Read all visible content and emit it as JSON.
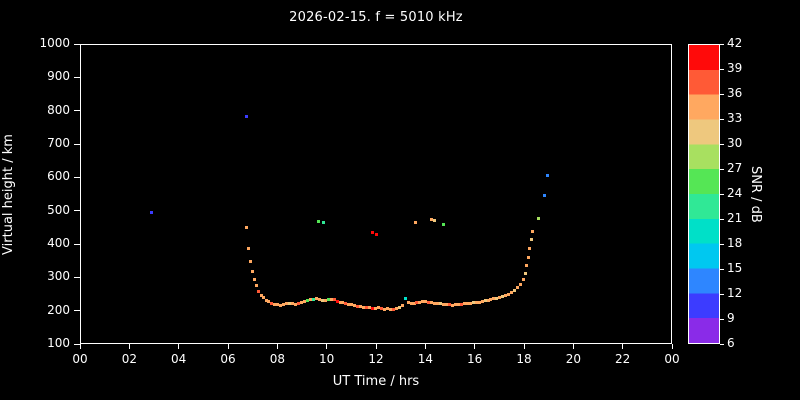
{
  "title": "2026-02-15. f = 5010 kHz",
  "colors": {
    "background": "#000000",
    "foreground": "#ffffff"
  },
  "chart_data": {
    "type": "scatter",
    "title": "2026-02-15. f = 5010 kHz",
    "xlabel": "UT Time / hrs",
    "ylabel": "Virtual height / km",
    "colorbar_label": "SNR / dB",
    "xlim": [
      0,
      24
    ],
    "ylim": [
      100,
      1000
    ],
    "grid": false,
    "x_tick_labels": [
      "00",
      "02",
      "04",
      "06",
      "08",
      "10",
      "12",
      "14",
      "16",
      "18",
      "20",
      "22",
      "00"
    ],
    "y_tick_values": [
      100,
      200,
      300,
      400,
      500,
      600,
      700,
      800,
      900,
      1000
    ],
    "colorbar_tick_values": [
      6,
      9,
      12,
      15,
      18,
      21,
      24,
      27,
      30,
      33,
      36,
      39,
      42
    ],
    "colorbar_range": [
      6,
      42
    ],
    "colorbar_bands": [
      {
        "min": 6,
        "max": 9,
        "color": "#8a2be8"
      },
      {
        "min": 9,
        "max": 12,
        "color": "#3c3cff"
      },
      {
        "min": 12,
        "max": 15,
        "color": "#2e86ff"
      },
      {
        "min": 15,
        "max": 18,
        "color": "#00c8f0"
      },
      {
        "min": 18,
        "max": 21,
        "color": "#00e0c8"
      },
      {
        "min": 21,
        "max": 24,
        "color": "#30e896"
      },
      {
        "min": 24,
        "max": 27,
        "color": "#55e655"
      },
      {
        "min": 27,
        "max": 30,
        "color": "#a8e060"
      },
      {
        "min": 30,
        "max": 33,
        "color": "#eec87e"
      },
      {
        "min": 33,
        "max": 36,
        "color": "#ffa860"
      },
      {
        "min": 36,
        "max": 39,
        "color": "#ff5a36"
      },
      {
        "min": 39,
        "max": 42,
        "color": "#ff0a0a"
      }
    ],
    "points_format": [
      "ut_hours",
      "virtual_height_km",
      "snr_db"
    ],
    "points": [
      [
        2.85,
        497,
        11
      ],
      [
        6.72,
        785,
        10
      ],
      [
        6.7,
        452,
        34
      ],
      [
        6.8,
        390,
        33
      ],
      [
        6.88,
        352,
        34
      ],
      [
        6.96,
        322,
        33
      ],
      [
        7.04,
        298,
        34
      ],
      [
        7.12,
        278,
        33
      ],
      [
        7.2,
        262,
        36
      ],
      [
        7.3,
        250,
        34
      ],
      [
        7.4,
        242,
        33
      ],
      [
        7.5,
        235,
        34
      ],
      [
        7.62,
        230,
        33
      ],
      [
        7.74,
        226,
        36
      ],
      [
        7.86,
        223,
        33
      ],
      [
        7.98,
        221,
        34
      ],
      [
        8.1,
        220,
        33
      ],
      [
        8.22,
        222,
        34
      ],
      [
        8.34,
        224,
        33
      ],
      [
        8.46,
        226,
        30
      ],
      [
        8.58,
        224,
        34
      ],
      [
        8.7,
        222,
        33
      ],
      [
        8.82,
        224,
        36
      ],
      [
        8.94,
        228,
        33
      ],
      [
        9.06,
        231,
        34
      ],
      [
        9.18,
        234,
        24
      ],
      [
        9.3,
        236,
        33
      ],
      [
        9.42,
        238,
        21
      ],
      [
        9.54,
        239,
        34
      ],
      [
        9.66,
        237,
        33
      ],
      [
        9.78,
        235,
        30
      ],
      [
        9.9,
        233,
        33
      ],
      [
        10.02,
        236,
        24
      ],
      [
        10.14,
        238,
        33
      ],
      [
        10.26,
        236,
        36
      ],
      [
        10.38,
        232,
        39
      ],
      [
        10.5,
        229,
        33
      ],
      [
        10.62,
        227,
        34
      ],
      [
        10.74,
        225,
        36
      ],
      [
        10.86,
        223,
        33
      ],
      [
        10.98,
        221,
        34
      ],
      [
        11.1,
        219,
        33
      ],
      [
        11.22,
        217,
        36
      ],
      [
        11.34,
        215,
        33
      ],
      [
        11.46,
        214,
        34
      ],
      [
        11.58,
        213,
        36
      ],
      [
        11.7,
        212,
        33
      ],
      [
        11.82,
        210,
        39
      ],
      [
        11.94,
        209,
        34
      ],
      [
        12.06,
        213,
        33
      ],
      [
        12.18,
        209,
        36
      ],
      [
        12.3,
        207,
        33
      ],
      [
        12.42,
        210,
        34
      ],
      [
        12.54,
        206,
        33
      ],
      [
        12.66,
        208,
        36
      ],
      [
        12.78,
        211,
        33
      ],
      [
        12.9,
        214,
        30
      ],
      [
        13.02,
        219,
        34
      ],
      [
        13.14,
        240,
        18
      ],
      [
        13.26,
        228,
        33
      ],
      [
        13.38,
        226,
        34
      ],
      [
        13.5,
        225,
        33
      ],
      [
        13.62,
        227,
        36
      ],
      [
        13.74,
        229,
        33
      ],
      [
        13.86,
        231,
        34
      ],
      [
        13.98,
        231,
        33
      ],
      [
        14.1,
        229,
        36
      ],
      [
        14.22,
        227,
        33
      ],
      [
        14.34,
        226,
        34
      ],
      [
        14.46,
        225,
        33
      ],
      [
        14.58,
        224,
        30
      ],
      [
        14.7,
        223,
        34
      ],
      [
        14.82,
        222,
        33
      ],
      [
        14.94,
        221,
        36
      ],
      [
        15.06,
        220,
        33
      ],
      [
        15.18,
        221,
        34
      ],
      [
        15.3,
        222,
        33
      ],
      [
        15.42,
        223,
        36
      ],
      [
        15.54,
        224,
        33
      ],
      [
        15.66,
        225,
        34
      ],
      [
        15.78,
        226,
        33
      ],
      [
        15.9,
        227,
        30
      ],
      [
        16.02,
        228,
        33
      ],
      [
        16.14,
        229,
        34
      ],
      [
        16.26,
        231,
        33
      ],
      [
        16.38,
        233,
        30
      ],
      [
        16.5,
        235,
        33
      ],
      [
        16.62,
        237,
        34
      ],
      [
        16.74,
        239,
        33
      ],
      [
        16.86,
        241,
        30
      ],
      [
        16.98,
        243,
        33
      ],
      [
        17.1,
        246,
        30
      ],
      [
        17.22,
        249,
        33
      ],
      [
        17.34,
        253,
        34
      ],
      [
        17.46,
        258,
        33
      ],
      [
        17.58,
        264,
        30
      ],
      [
        17.7,
        272,
        33
      ],
      [
        17.82,
        283,
        34
      ],
      [
        17.94,
        297,
        33
      ],
      [
        18.02,
        315,
        30
      ],
      [
        18.08,
        338,
        33
      ],
      [
        18.14,
        362,
        34
      ],
      [
        18.2,
        390,
        33
      ],
      [
        18.26,
        418,
        30
      ],
      [
        18.32,
        442,
        33
      ],
      [
        9.62,
        472,
        24
      ],
      [
        9.84,
        468,
        21
      ],
      [
        11.8,
        437,
        40
      ],
      [
        11.96,
        432,
        39
      ],
      [
        13.58,
        468,
        33
      ],
      [
        14.2,
        478,
        33
      ],
      [
        14.34,
        474,
        30
      ],
      [
        14.7,
        463,
        24
      ],
      [
        18.55,
        480,
        27
      ],
      [
        18.8,
        550,
        12
      ],
      [
        18.9,
        608,
        12
      ]
    ]
  }
}
